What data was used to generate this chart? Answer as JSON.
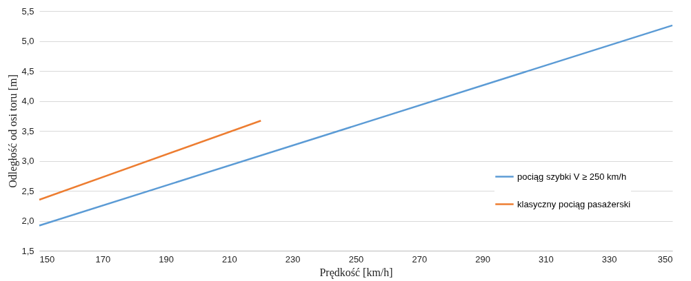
{
  "chart_data": {
    "type": "line",
    "xlabel": "Prędkość [km/h]",
    "ylabel": "Odległość od osi toru [m]",
    "xlim": [
      150,
      350
    ],
    "xticks": [
      150,
      170,
      190,
      210,
      230,
      250,
      270,
      290,
      310,
      330,
      350
    ],
    "ylim": [
      1.5,
      5.5
    ],
    "yticks": [
      {
        "value": 1.5,
        "label": "1,5"
      },
      {
        "value": 2.0,
        "label": "2,0"
      },
      {
        "value": 2.5,
        "label": "2,5"
      },
      {
        "value": 3.0,
        "label": "3,0"
      },
      {
        "value": 3.5,
        "label": "3,5"
      },
      {
        "value": 4.0,
        "label": "4,0"
      },
      {
        "value": 4.5,
        "label": "4,5"
      },
      {
        "value": 5.0,
        "label": "5,0"
      },
      {
        "value": 5.5,
        "label": "5,5"
      }
    ],
    "grid": "y",
    "legend": "bottom right",
    "marker": "none",
    "line_style": "solid",
    "series": [
      {
        "name": "pociąg szybki V ≥ 250 km/h",
        "color": "#5b9bd5",
        "x": [
          150,
          350
        ],
        "values": [
          1.92,
          5.26
        ]
      },
      {
        "name": "klasyczny pociąg pasażerski",
        "color": "#ed7d31",
        "x": [
          150,
          220
        ],
        "values": [
          2.35,
          3.67
        ]
      }
    ]
  }
}
